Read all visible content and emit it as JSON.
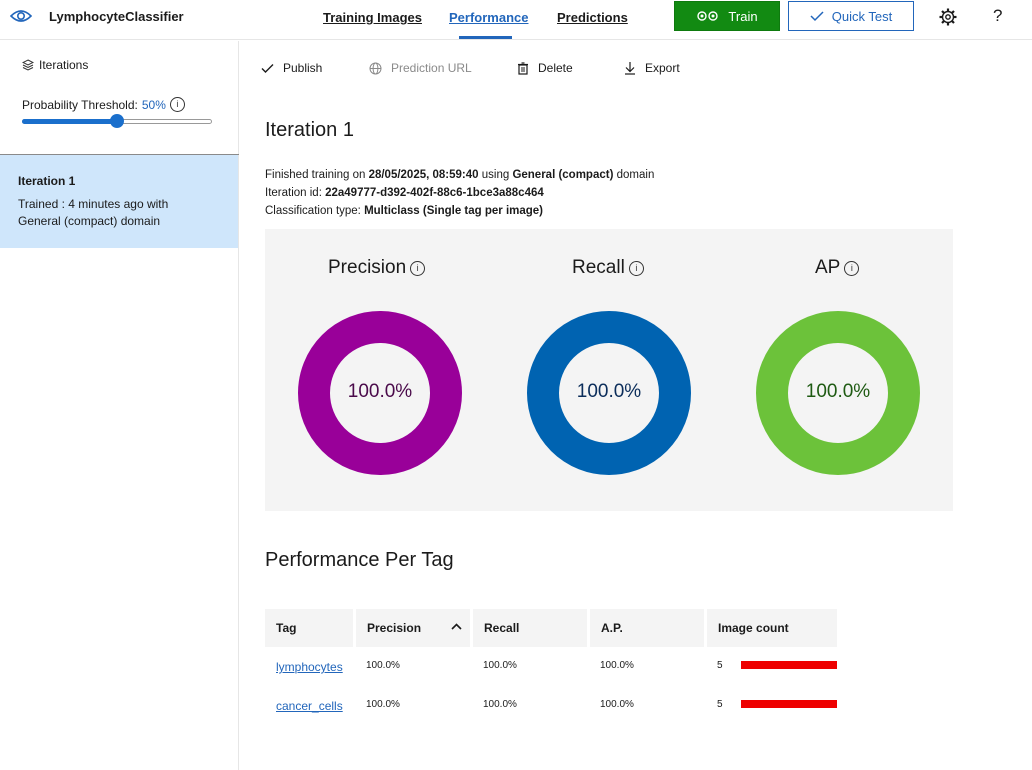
{
  "app": {
    "title": "LymphocyteClassifier"
  },
  "nav": {
    "tabs": [
      {
        "label": "Training Images"
      },
      {
        "label": "Performance"
      },
      {
        "label": "Predictions"
      }
    ],
    "train_label": "Train",
    "quick_test_label": "Quick Test",
    "help_label": "?"
  },
  "sidebar": {
    "iterations_label": "Iterations",
    "threshold_label": "Probability Threshold:",
    "threshold_value": "50%",
    "threshold_fraction": 0.5,
    "iteration": {
      "name": "Iteration 1",
      "desc": "Trained : 4 minutes ago with General (compact) domain"
    }
  },
  "toolbar": {
    "publish": "Publish",
    "prediction_url": "Prediction URL",
    "delete": "Delete",
    "export": "Export"
  },
  "main": {
    "title": "Iteration 1",
    "finished_prefix": "Finished training on ",
    "finished_date": "28/05/2025, 08:59:40",
    "finished_mid": " using ",
    "finished_domain": "General (compact)",
    "finished_suffix": " domain",
    "iteration_id_label": "Iteration id: ",
    "iteration_id": "22a49777-d392-402f-88c6-1bce3a88c464",
    "classification_label": "Classification type: ",
    "classification_type": "Multiclass (Single tag per image)"
  },
  "metrics": [
    {
      "label": "Precision",
      "value": "100.0%",
      "color": "#990099",
      "text_color": "#4a0a4a"
    },
    {
      "label": "Recall",
      "value": "100.0%",
      "color": "#0063b1",
      "text_color": "#0b2d5a"
    },
    {
      "label": "AP",
      "value": "100.0%",
      "color": "#6cc23a",
      "text_color": "#1e5a12"
    }
  ],
  "per_tag": {
    "title": "Performance Per Tag",
    "headers": {
      "tag": "Tag",
      "precision": "Precision",
      "recall": "Recall",
      "ap": "A.P.",
      "image_count": "Image count"
    },
    "rows": [
      {
        "tag": "lymphocytes",
        "precision": "100.0%",
        "recall": "100.0%",
        "ap": "100.0%",
        "image_count": "5"
      },
      {
        "tag": "cancer_cells",
        "precision": "100.0%",
        "recall": "100.0%",
        "ap": "100.0%",
        "image_count": "5"
      }
    ]
  }
}
